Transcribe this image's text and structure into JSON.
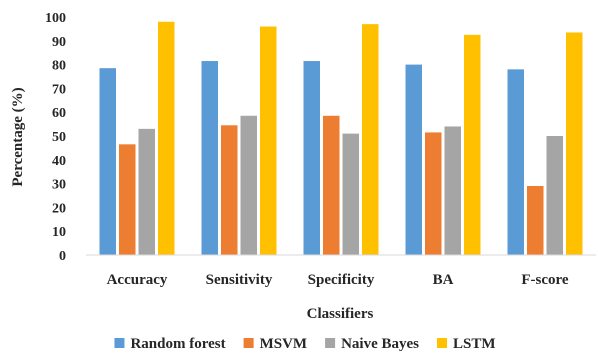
{
  "chart_data": {
    "type": "bar",
    "title": "",
    "xlabel": "Classifiers",
    "ylabel": "Percentage (%)",
    "categories": [
      "Accuracy",
      "Sensitivity",
      "Specificity",
      "BA",
      "F-score"
    ],
    "series": [
      {
        "name": "Random forest",
        "color": "#5B9BD5",
        "values": [
          78.5,
          81.5,
          81.5,
          80.0,
          78.0
        ]
      },
      {
        "name": "MSVM",
        "color": "#ED7D31",
        "values": [
          46.5,
          54.5,
          58.5,
          51.5,
          29.0
        ]
      },
      {
        "name": "Naive Bayes",
        "color": "#A5A5A5",
        "values": [
          53.0,
          58.5,
          51.0,
          54.0,
          50.0
        ]
      },
      {
        "name": "LSTM",
        "color": "#FFC000",
        "values": [
          98.0,
          96.0,
          97.0,
          92.5,
          93.5
        ]
      }
    ],
    "ylim": [
      0,
      100
    ],
    "yticks": [
      0,
      10,
      20,
      30,
      40,
      50,
      60,
      70,
      80,
      90,
      100
    ],
    "grid": false,
    "legend_position": "bottom"
  }
}
